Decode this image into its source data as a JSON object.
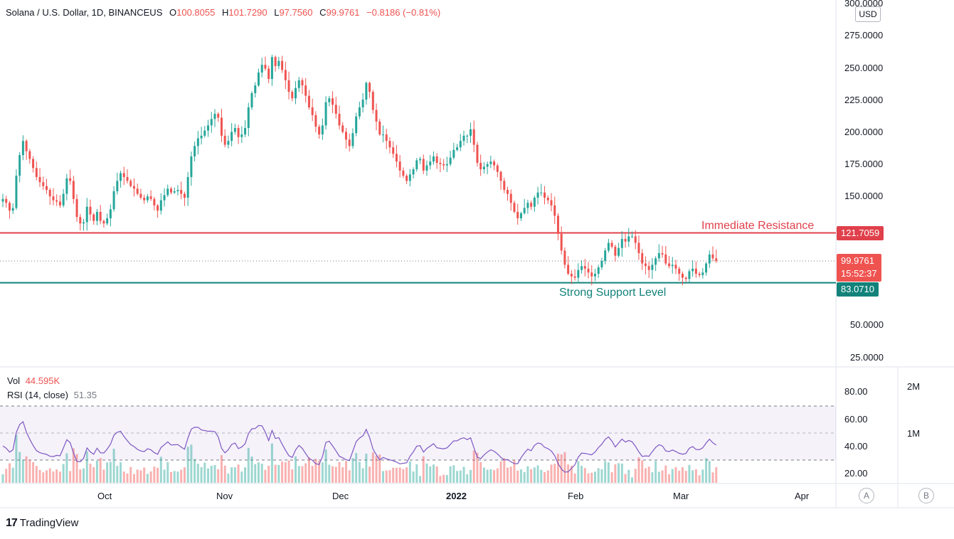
{
  "header": {
    "symbol": "Solana / U.S. Dollar, 1D, BINANCEUS",
    "open_label": "O",
    "open": "100.8055",
    "high_label": "H",
    "high": "101.7290",
    "low_label": "L",
    "low": "97.7560",
    "close_label": "C",
    "close": "99.9761",
    "change": "−0.8186 (−0.81%)"
  },
  "currency": "USD",
  "price_axis": [
    "300.0000",
    "275.0000",
    "250.0000",
    "225.0000",
    "200.0000",
    "175.0000",
    "150.0000",
    "50.0000",
    "25.0000"
  ],
  "time_axis": [
    "Oct",
    "Nov",
    "Dec",
    "2022",
    "Feb",
    "Mar",
    "Apr"
  ],
  "tags": {
    "resistance_price": "121.7059",
    "current_price": "99.9761",
    "countdown": "15:52:37",
    "support_price": "83.0710"
  },
  "annotations": {
    "resistance": "Immediate Resistance",
    "support": "Strong Support Level"
  },
  "indicators": {
    "vol_label": "Vol",
    "vol_value": "44.595K",
    "rsi_label": "RSI (14, close)",
    "rsi_value": "51.35",
    "rsi_axis": [
      "80.00",
      "60.00",
      "40.00",
      "20.00"
    ],
    "vol_axis": [
      "2M",
      "1M"
    ]
  },
  "scale_buttons": [
    "A",
    "B"
  ],
  "logo": {
    "mark": "17",
    "text": "TradingView"
  },
  "colors": {
    "up": "#26a69a",
    "down": "#ef5350",
    "resistance": "#e0404b",
    "support": "#12827a",
    "rsi_line": "#7e57c2"
  },
  "chart_data": {
    "type": "candlestick",
    "price_ylim": [
      25,
      300
    ],
    "resistance_level": 121.7059,
    "support_level": 83.071,
    "current_price": 99.9761,
    "closes": [
      148,
      145,
      139,
      141,
      166,
      182,
      193,
      185,
      179,
      172,
      165,
      161,
      158,
      155,
      150,
      147,
      146,
      143,
      152,
      164,
      162,
      148,
      134,
      129,
      130,
      142,
      136,
      131,
      138,
      131,
      129,
      133,
      140,
      154,
      162,
      168,
      165,
      162,
      158,
      156,
      152,
      149,
      147,
      150,
      148,
      143,
      139,
      147,
      151,
      156,
      153,
      154,
      155,
      152,
      149,
      165,
      181,
      189,
      195,
      197,
      201,
      205,
      210,
      214,
      211,
      197,
      190,
      193,
      200,
      203,
      196,
      198,
      203,
      219,
      230,
      236,
      246,
      252,
      249,
      241,
      258,
      251,
      255,
      248,
      240,
      231,
      226,
      234,
      240,
      236,
      228,
      219,
      213,
      204,
      198,
      205,
      223,
      226,
      221,
      214,
      205,
      200,
      194,
      189,
      199,
      212,
      219,
      225,
      238,
      231,
      217,
      208,
      198,
      198,
      193,
      188,
      183,
      177,
      170,
      166,
      162,
      167,
      171,
      178,
      179,
      170,
      174,
      177,
      181,
      176,
      175,
      174,
      175,
      180,
      186,
      188,
      193,
      197,
      197,
      202,
      190,
      176,
      171,
      173,
      175,
      177,
      174,
      169,
      162,
      155,
      152,
      145,
      138,
      133,
      137,
      141,
      145,
      142,
      149,
      153,
      153,
      149,
      147,
      143,
      135,
      121,
      108,
      97,
      90,
      88,
      87,
      93,
      96,
      94,
      91,
      88,
      90,
      95,
      100,
      108,
      114,
      111,
      104,
      110,
      117,
      115,
      119,
      119,
      114,
      106,
      98,
      96,
      93,
      97,
      102,
      106,
      105,
      98,
      96,
      97,
      94,
      90,
      87,
      86,
      92,
      94,
      90,
      89,
      91,
      98,
      105,
      102,
      100
    ]
  }
}
